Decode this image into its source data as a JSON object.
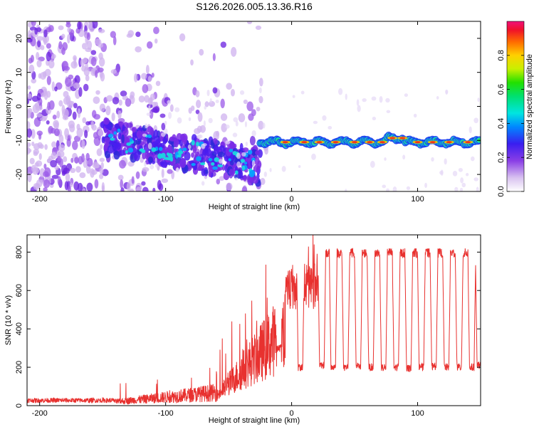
{
  "title": "S126.2026.005.13.36.R16",
  "chart_data": [
    {
      "type": "heatmap",
      "xlabel": "Height of straight line (km)",
      "ylabel": "Frequency (Hz)",
      "xlim": [
        -210,
        150
      ],
      "ylim": [
        -25,
        25
      ],
      "x_ticks": [
        -200,
        -100,
        0,
        100
      ],
      "x_tick_labels": [
        "-200",
        "-100",
        "0",
        "100"
      ],
      "y_ticks": [
        20,
        10,
        0,
        -10,
        -20
      ],
      "y_tick_labels": [
        "20",
        "10",
        "0",
        "-10",
        "-20"
      ],
      "colorbar": {
        "label": "Normalized spectral amplitude",
        "range": [
          0,
          1
        ],
        "ticks": [
          0.0,
          0.2,
          0.4,
          0.6,
          0.8
        ],
        "tick_labels": [
          "0.0",
          "0.2",
          "0.4",
          "0.6",
          "0.8"
        ]
      },
      "ridge_frequency_hz": -10.5,
      "ridge_start_km": -25
    },
    {
      "type": "line",
      "xlabel": "Height of straight line (km)",
      "ylabel": "SNR (10 * v/v)",
      "xlim": [
        -210,
        150
      ],
      "ylim": [
        0,
        890
      ],
      "x_ticks": [
        -200,
        -100,
        0,
        100
      ],
      "x_tick_labels": [
        "-200",
        "-100",
        "0",
        "100"
      ],
      "y_ticks": [
        0,
        200,
        400,
        600,
        800
      ],
      "y_tick_labels": [
        "0",
        "200",
        "400",
        "600",
        "800"
      ],
      "color": "#e8312f",
      "plateau_value": 795,
      "plateau_start_km": 25,
      "dips_km": [
        -10,
        7,
        24,
        33,
        43,
        53,
        63,
        73,
        83,
        93,
        103,
        113,
        123,
        133,
        143,
        149
      ],
      "dip_values": [
        300,
        200,
        210,
        200,
        200,
        205,
        200,
        200,
        200,
        195,
        200,
        205,
        200,
        200,
        200,
        210
      ]
    }
  ]
}
